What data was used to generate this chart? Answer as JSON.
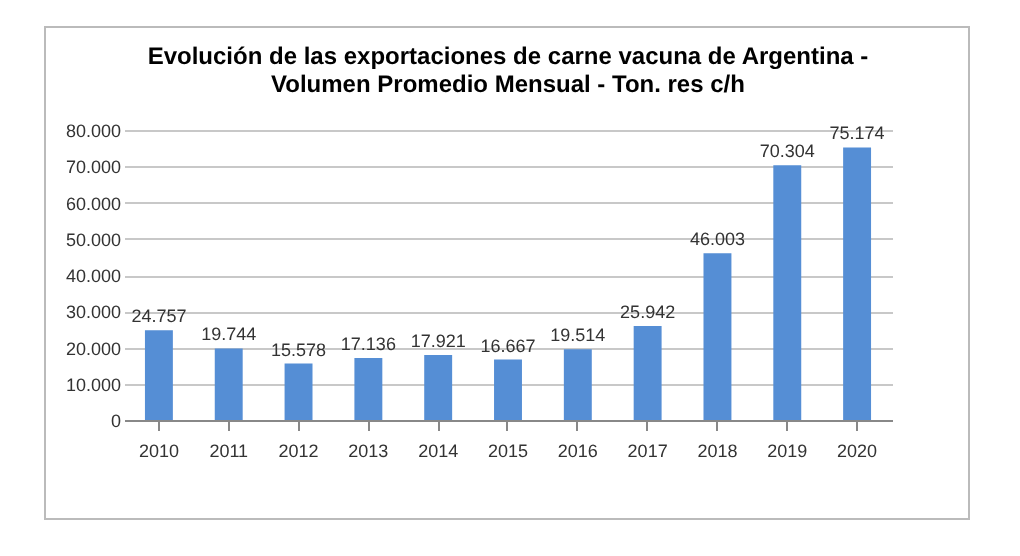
{
  "chart_data": {
    "type": "bar",
    "title": [
      "Evolución de las exportaciones de carne vacuna de Argentina -",
      "Volumen Promedio Mensual - Ton. res c/h"
    ],
    "categories": [
      "2010",
      "2011",
      "2012",
      "2013",
      "2014",
      "2015",
      "2016",
      "2017",
      "2018",
      "2019",
      "2020"
    ],
    "values": [
      24757,
      19744,
      15578,
      17136,
      17921,
      16667,
      19514,
      25942,
      46003,
      70304,
      75174
    ],
    "value_labels": [
      "24.757",
      "19.744",
      "15.578",
      "17.136",
      "17.921",
      "16.667",
      "19.514",
      "25.942",
      "46.003",
      "70.304",
      "75.174"
    ],
    "color": "#558ed5",
    "ylim": [
      0,
      80000
    ],
    "yticks": [
      0,
      {
        "value": 10000,
        "label": "10.000"
      },
      {
        "value": 20000,
        "label": "20.000"
      },
      {
        "value": 30000,
        "label": "30.000"
      },
      {
        "value": 40000,
        "label": "40.000"
      },
      {
        "value": 50000,
        "label": "50.000"
      },
      {
        "value": 60000,
        "label": "60.000"
      },
      {
        "value": 70000,
        "label": "70.000"
      },
      {
        "value": 80000,
        "label": "80.000"
      }
    ],
    "grid": "y"
  }
}
